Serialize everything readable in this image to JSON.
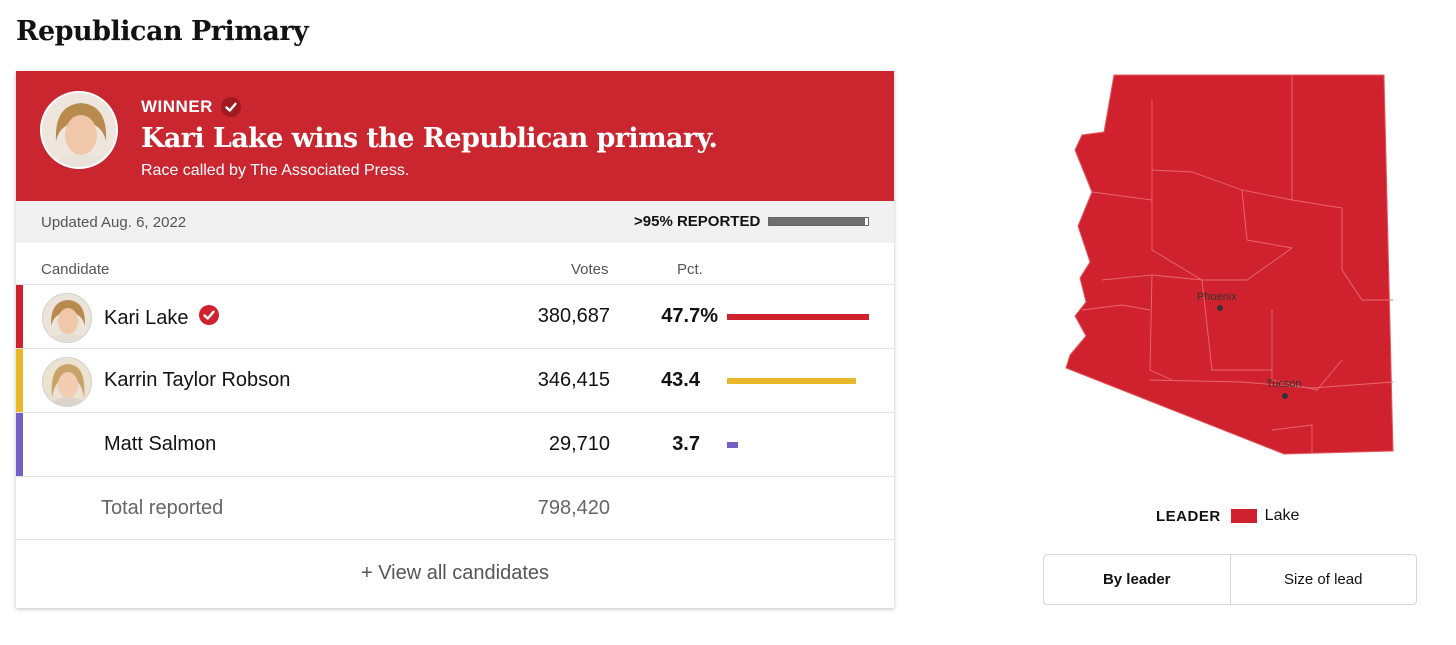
{
  "page": {
    "title": "Republican Primary"
  },
  "banner": {
    "winner_label": "WINNER",
    "headline": "Kari Lake wins the Republican primary.",
    "subline": "Race called by The Associated Press."
  },
  "status": {
    "updated": "Updated Aug. 6, 2022",
    "reported": ">95% REPORTED",
    "reported_fraction": 0.97
  },
  "table": {
    "headers": {
      "candidate": "Candidate",
      "votes": "Votes",
      "pct": "Pct."
    },
    "rows": [
      {
        "name": "Kari Lake",
        "votes": "380,687",
        "pct": "47.7%",
        "pct_value": 47.7,
        "color": "#d0222e",
        "winner": true
      },
      {
        "name": "Karrin Taylor Robson",
        "votes": "346,415",
        "pct": "43.4",
        "pct_value": 43.4,
        "color": "#e9b829",
        "winner": false
      },
      {
        "name": "Matt Salmon",
        "votes": "29,710",
        "pct": "3.7",
        "pct_value": 3.7,
        "color": "#7460c4",
        "winner": false
      }
    ],
    "total_label": "Total reported",
    "total_votes": "798,420",
    "view_all": "+ View all candidates"
  },
  "map": {
    "fill_color": "#d0222e",
    "cities": [
      "Phoenix",
      "Tucson"
    ]
  },
  "legend": {
    "title": "LEADER",
    "label": "Lake",
    "color": "#d0222e"
  },
  "toggle": {
    "by_leader": "By leader",
    "size_of_lead": "Size of lead"
  }
}
